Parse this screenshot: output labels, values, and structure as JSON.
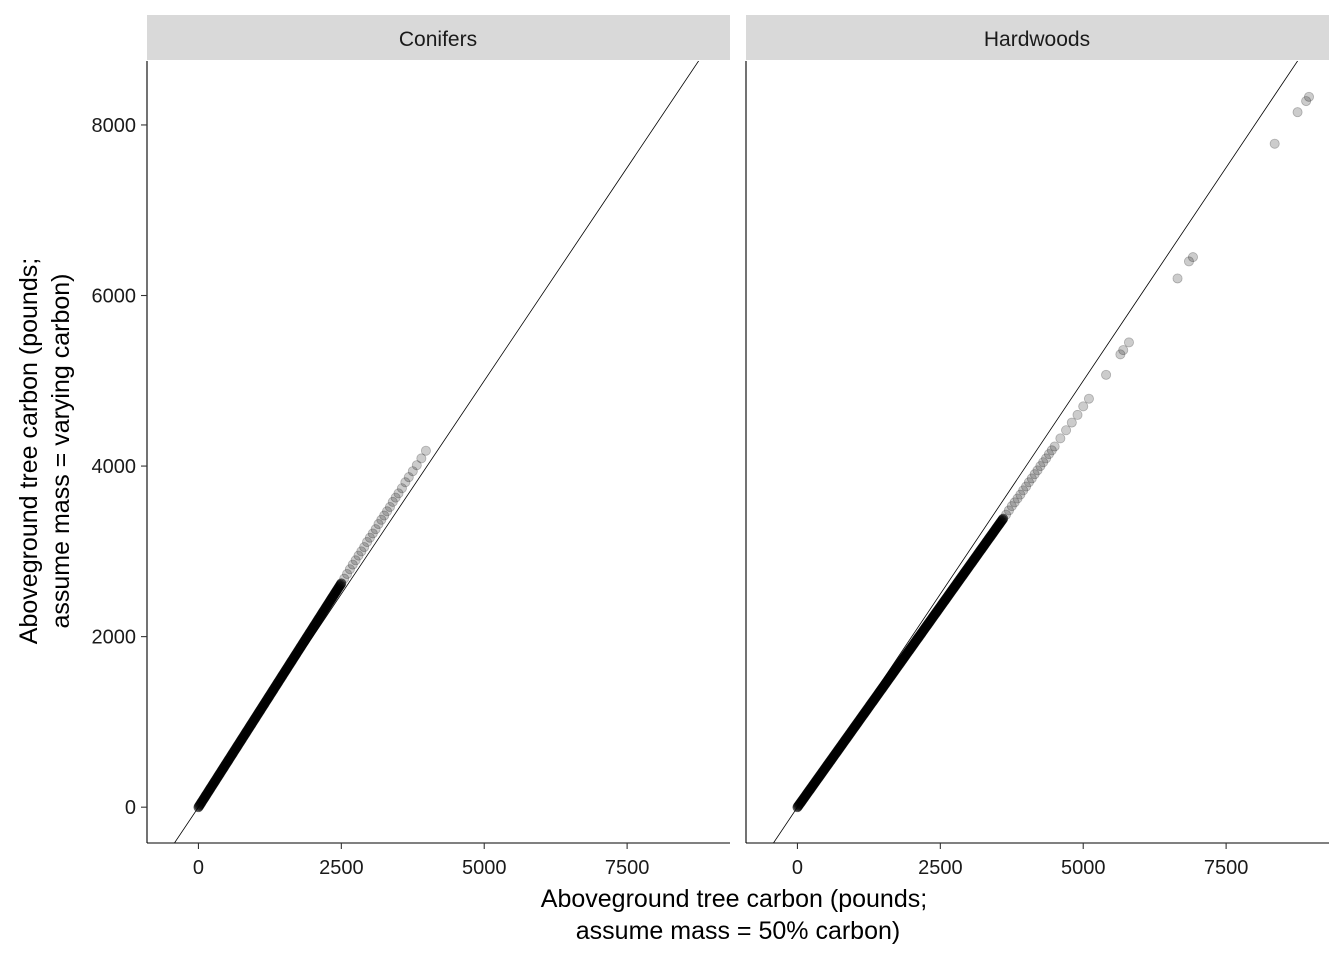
{
  "chart_data": {
    "type": "scatter",
    "xlabel_lines": [
      "Aboveground tree carbon (pounds;",
      "assume mass = 50% carbon)"
    ],
    "ylabel_lines": [
      "Aboveground tree carbon (pounds;",
      "assume mass = varying carbon)"
    ],
    "xlim": [
      -900,
      9300
    ],
    "ylim": [
      -420,
      8750
    ],
    "x_ticks": [
      0,
      2500,
      5000,
      7500
    ],
    "y_ticks": [
      0,
      2000,
      4000,
      6000,
      8000
    ],
    "x_tick_labels": [
      "0",
      "2500",
      "5000",
      "7500"
    ],
    "y_tick_labels": [
      "0",
      "2000",
      "4000",
      "6000",
      "8000"
    ],
    "reference_line": {
      "slope": 1,
      "intercept": 0
    },
    "point_color": "#000000",
    "point_alpha": 0.2,
    "grid": false,
    "facets": [
      {
        "label": "Conifers",
        "dense_segment": {
          "x_start": 0,
          "x_end": 2500,
          "slope": 1.05
        },
        "points": [
          [
            2550,
            2680
          ],
          [
            2600,
            2735
          ],
          [
            2650,
            2790
          ],
          [
            2700,
            2845
          ],
          [
            2750,
            2895
          ],
          [
            2800,
            2950
          ],
          [
            2850,
            3000
          ],
          [
            2900,
            3050
          ],
          [
            2950,
            3110
          ],
          [
            3000,
            3160
          ],
          [
            3050,
            3210
          ],
          [
            3100,
            3260
          ],
          [
            3150,
            3320
          ],
          [
            3200,
            3370
          ],
          [
            3250,
            3420
          ],
          [
            3300,
            3470
          ],
          [
            3350,
            3520
          ],
          [
            3400,
            3580
          ],
          [
            3450,
            3630
          ],
          [
            3500,
            3680
          ],
          [
            3560,
            3740
          ],
          [
            3620,
            3810
          ],
          [
            3680,
            3870
          ],
          [
            3750,
            3940
          ],
          [
            3820,
            4010
          ],
          [
            3900,
            4090
          ],
          [
            3980,
            4180
          ]
        ]
      },
      {
        "label": "Hardwoods",
        "dense_segment": {
          "x_start": 0,
          "x_end": 3600,
          "slope": 0.94
        },
        "points": [
          [
            3650,
            3430
          ],
          [
            3700,
            3480
          ],
          [
            3750,
            3530
          ],
          [
            3800,
            3575
          ],
          [
            3850,
            3620
          ],
          [
            3900,
            3665
          ],
          [
            3950,
            3715
          ],
          [
            4000,
            3760
          ],
          [
            4050,
            3810
          ],
          [
            4100,
            3855
          ],
          [
            4150,
            3905
          ],
          [
            4200,
            3950
          ],
          [
            4250,
            4000
          ],
          [
            4300,
            4045
          ],
          [
            4350,
            4090
          ],
          [
            4400,
            4140
          ],
          [
            4450,
            4185
          ],
          [
            4500,
            4230
          ],
          [
            4600,
            4325
          ],
          [
            4700,
            4420
          ],
          [
            4800,
            4510
          ],
          [
            4900,
            4600
          ],
          [
            5000,
            4700
          ],
          [
            5100,
            4790
          ],
          [
            5400,
            5070
          ],
          [
            5650,
            5310
          ],
          [
            5700,
            5360
          ],
          [
            5800,
            5450
          ],
          [
            6650,
            6200
          ],
          [
            6850,
            6400
          ],
          [
            6920,
            6450
          ],
          [
            8350,
            7780
          ],
          [
            8750,
            8150
          ],
          [
            8900,
            8280
          ],
          [
            8950,
            8330
          ]
        ]
      }
    ]
  }
}
